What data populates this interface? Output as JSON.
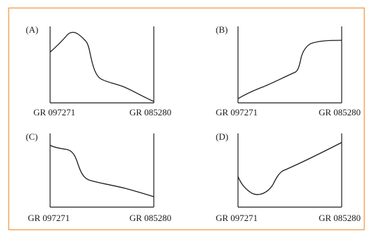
{
  "figure": {
    "border_color": "#f2a65a",
    "line_color": "#1a1a1a",
    "panels": [
      {
        "id": "A",
        "label": "(A)",
        "left_label": "GR 097271",
        "right_label": "GR 085280"
      },
      {
        "id": "B",
        "label": "(B)",
        "left_label": "GR 097271",
        "right_label": "GR 085280"
      },
      {
        "id": "C",
        "label": "(C)",
        "left_label": "GR 097271",
        "right_label": "GR 085280"
      },
      {
        "id": "D",
        "label": "(D)",
        "left_label": "GR 097271",
        "right_label": "GR 085280"
      }
    ]
  }
}
